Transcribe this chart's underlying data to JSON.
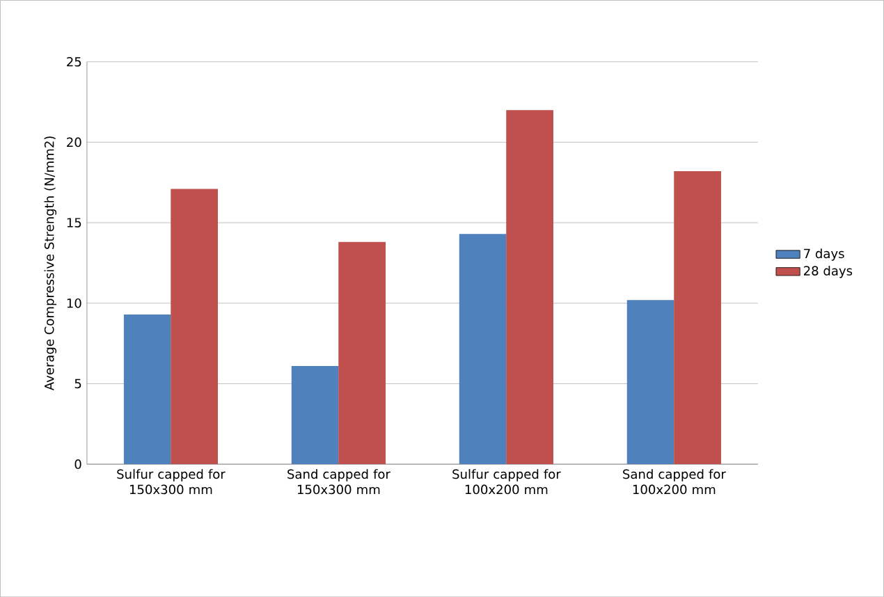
{
  "chart_data": {
    "type": "bar",
    "ylabel": "Average Compressive Strength (N/mm2)",
    "categories": [
      "Sulfur capped for 150x300 mm",
      "Sand capped for 150x300 mm",
      "Sulfur capped for 100x200 mm",
      "Sand capped for 100x200 mm"
    ],
    "series": [
      {
        "name": "7 days",
        "color": "#4f81bd",
        "values": [
          9.3,
          6.1,
          14.3,
          10.2
        ]
      },
      {
        "name": "28 days",
        "color": "#c0504d",
        "values": [
          17.1,
          13.8,
          22.0,
          18.2
        ]
      }
    ],
    "ylim": [
      0,
      25
    ],
    "yticks": [
      0,
      5,
      10,
      15,
      20,
      25
    ],
    "grid": "y",
    "legend": "right"
  }
}
